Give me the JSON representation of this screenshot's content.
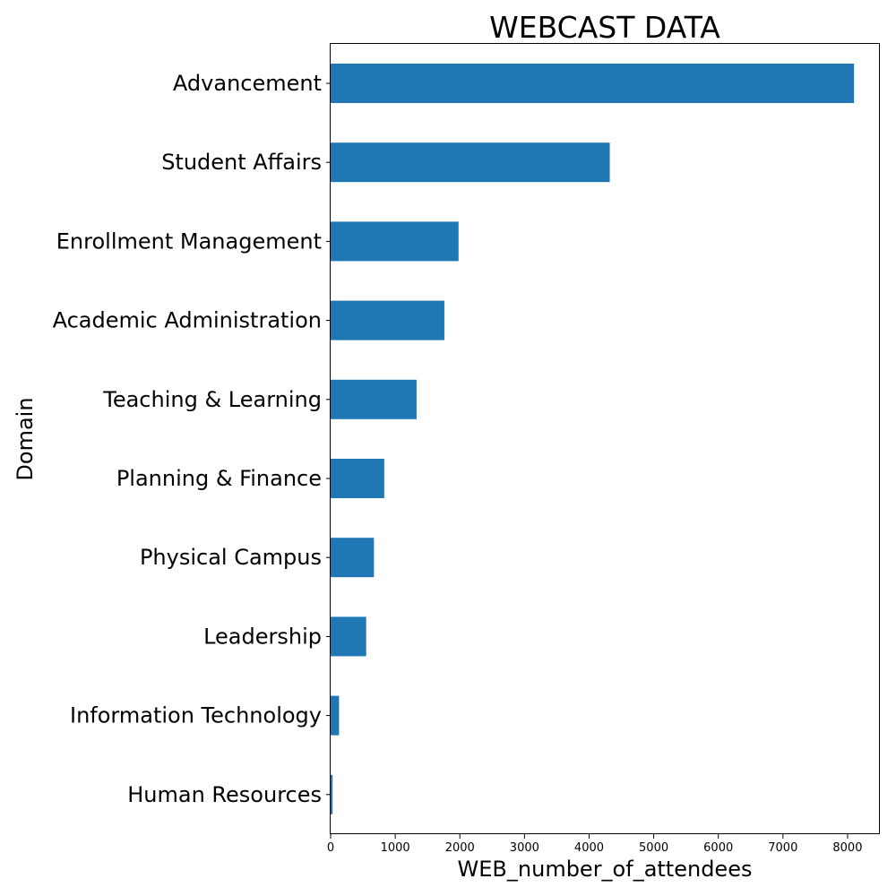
{
  "chart_data": {
    "type": "bar",
    "orientation": "horizontal",
    "title": "WEBCAST DATA",
    "xlabel": "WEB_number_of_attendees",
    "ylabel": "Domain",
    "categories": [
      "Advancement",
      "Student Affairs",
      "Enrollment Management",
      "Academic Administration",
      "Teaching & Learning",
      "Planning & Finance",
      "Physical Campus",
      "Leadership",
      "Information Technology",
      "Human Resources"
    ],
    "values": [
      8100,
      4320,
      1980,
      1760,
      1330,
      830,
      670,
      550,
      130,
      30
    ],
    "xlim": [
      0,
      8500
    ],
    "xticks": [
      "0",
      "1000",
      "2000",
      "3000",
      "4000",
      "5000",
      "6000",
      "7000",
      "8000"
    ],
    "bar_color": "#1f77b4",
    "grid": false,
    "legend": false
  }
}
